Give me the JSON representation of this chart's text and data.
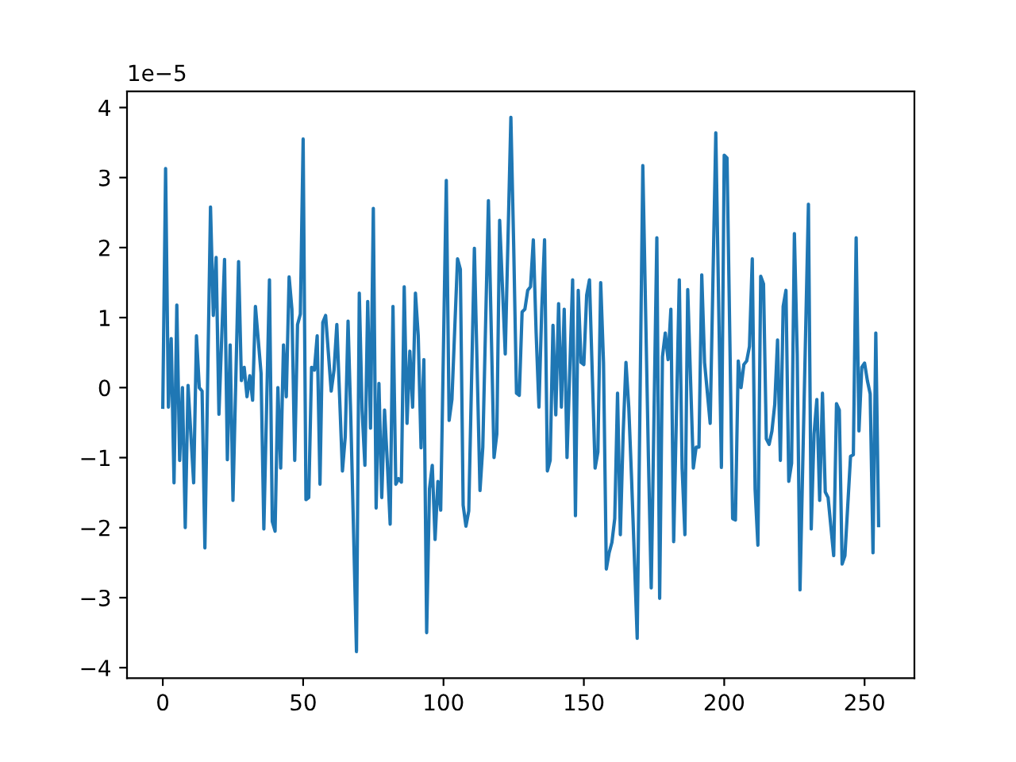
{
  "chart_data": {
    "type": "line",
    "xlim": [
      -12.75,
      267.75
    ],
    "xticks": [
      0,
      50,
      100,
      150,
      200,
      250
    ],
    "ylim": [
      -4.15,
      4.23
    ],
    "yticks": [
      {
        "value": -4,
        "label": "−4"
      },
      {
        "value": -3,
        "label": "−3"
      },
      {
        "value": -2,
        "label": "−2"
      },
      {
        "value": -1,
        "label": "−1"
      },
      0,
      1,
      2,
      3,
      4
    ],
    "annotations": [
      "1e−5"
    ],
    "series": [
      {
        "color": "#1f77b4",
        "x": [
          0,
          1,
          2,
          3,
          4,
          5,
          6,
          7,
          8,
          9,
          11,
          12,
          13,
          14,
          15,
          17,
          18,
          19,
          20,
          22,
          23,
          24,
          25,
          27,
          28,
          29,
          30,
          31,
          32,
          33,
          35,
          36,
          38,
          39,
          40,
          41,
          42,
          43,
          44,
          45,
          46,
          47,
          48,
          49,
          50,
          51,
          52,
          53,
          54,
          55,
          56,
          57,
          58,
          60,
          61,
          62,
          64,
          65,
          66,
          67,
          69,
          70,
          71,
          72,
          73,
          74,
          75,
          76,
          77,
          78,
          79,
          80,
          81,
          82,
          83,
          84,
          85,
          86,
          87,
          88,
          89,
          90,
          91,
          92,
          93,
          94,
          95,
          96,
          97,
          98,
          99,
          101,
          102,
          103,
          105,
          106,
          107,
          108,
          109,
          111,
          113,
          114,
          116,
          118,
          119,
          120,
          122,
          124,
          125,
          126,
          127,
          128,
          129,
          130,
          131,
          132,
          133,
          134,
          135,
          136,
          137,
          138,
          139,
          140,
          141,
          142,
          143,
          144,
          146,
          147,
          148,
          149,
          150,
          151,
          152,
          154,
          155,
          156,
          157,
          158,
          159,
          160,
          161,
          162,
          163,
          164,
          165,
          166,
          167,
          169,
          171,
          173,
          174,
          176,
          177,
          178,
          179,
          180,
          181,
          182,
          184,
          185,
          186,
          187,
          189,
          190,
          191,
          192,
          193,
          195,
          197,
          199,
          200,
          201,
          203,
          204,
          205,
          206,
          207,
          208,
          209,
          210,
          211,
          212,
          213,
          214,
          215,
          216,
          217,
          218,
          219,
          220,
          221,
          222,
          223,
          224,
          225,
          226,
          227,
          230,
          231,
          232,
          233,
          234,
          235,
          236,
          237,
          239,
          240,
          241,
          242,
          243,
          245,
          246,
          247,
          248,
          249,
          250,
          251,
          252,
          253,
          254,
          255
        ],
        "values": [
          -0.28,
          3.13,
          -0.28,
          0.7,
          -1.36,
          1.18,
          -1.04,
          0.0,
          -2.0,
          0.03,
          -1.36,
          0.74,
          0.0,
          -0.05,
          -2.29,
          2.58,
          1.03,
          1.86,
          -0.38,
          1.83,
          -1.03,
          0.61,
          -1.61,
          1.8,
          0.1,
          0.29,
          -0.13,
          0.17,
          -0.18,
          1.16,
          0.21,
          -2.02,
          1.54,
          -1.91,
          -2.05,
          0.0,
          -1.15,
          0.61,
          -0.13,
          1.58,
          1.12,
          -1.04,
          0.9,
          1.05,
          3.55,
          -1.6,
          -1.57,
          0.29,
          0.25,
          0.74,
          -1.38,
          0.93,
          1.03,
          -0.05,
          0.25,
          0.9,
          -1.19,
          -0.7,
          0.95,
          -0.47,
          -3.77,
          1.35,
          -0.32,
          -1.11,
          1.23,
          -0.58,
          2.56,
          -1.72,
          0.06,
          -1.57,
          -0.32,
          -1.08,
          -1.95,
          1.16,
          -1.38,
          -1.3,
          -1.35,
          1.44,
          -0.51,
          0.52,
          -0.28,
          1.35,
          0.74,
          -0.86,
          0.4,
          -3.5,
          -1.45,
          -1.11,
          -2.17,
          -1.34,
          -1.75,
          2.96,
          -0.47,
          -0.17,
          1.84,
          1.69,
          -1.68,
          -1.98,
          -1.76,
          1.99,
          -1.47,
          -0.85,
          2.67,
          -1.0,
          -0.66,
          2.39,
          0.48,
          3.86,
          2.03,
          -0.08,
          -0.11,
          1.08,
          1.12,
          1.39,
          1.44,
          2.11,
          0.78,
          -0.28,
          1.12,
          2.11,
          -1.19,
          -1.04,
          0.89,
          -0.39,
          1.2,
          -0.28,
          1.12,
          -1.0,
          1.54,
          -1.83,
          1.39,
          0.36,
          0.33,
          1.32,
          1.54,
          -1.15,
          -0.92,
          1.5,
          0.36,
          -2.59,
          -2.36,
          -2.21,
          -1.87,
          -0.08,
          -2.1,
          -0.66,
          0.36,
          -0.28,
          -1.3,
          -3.58,
          3.17,
          -1.0,
          -2.86,
          2.14,
          -3.01,
          0.44,
          0.78,
          0.4,
          1.12,
          -2.2,
          1.54,
          -1.15,
          -2.1,
          1.4,
          -1.15,
          -0.85,
          -0.85,
          1.61,
          0.36,
          -0.51,
          3.64,
          -1.14,
          3.32,
          3.28,
          -1.87,
          -1.89,
          0.38,
          0.0,
          0.33,
          0.38,
          0.59,
          1.84,
          -1.45,
          -2.25,
          1.59,
          1.48,
          -0.73,
          -0.81,
          -0.62,
          -0.24,
          0.68,
          -1.04,
          1.16,
          1.39,
          -1.34,
          -1.08,
          2.2,
          0.48,
          -2.89,
          2.62,
          -2.02,
          -0.66,
          -0.17,
          -1.61,
          -0.08,
          -1.49,
          -1.57,
          -2.4,
          -0.23,
          -0.32,
          -2.52,
          -2.4,
          -0.98,
          -0.96,
          2.14,
          -0.62,
          0.29,
          0.35,
          0.1,
          -0.09,
          -2.36,
          0.78,
          -1.97
        ]
      }
    ]
  }
}
